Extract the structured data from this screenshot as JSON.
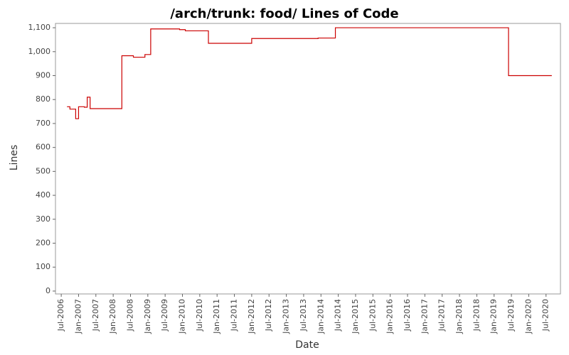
{
  "chart_data": {
    "type": "line",
    "step": true,
    "title": "/arch/trunk: food/ Lines of Code",
    "x_label": "Date",
    "y_label": "Lines",
    "x": [
      "2006-09",
      "2006-10",
      "2006-12",
      "2007-01",
      "2007-03",
      "2007-04",
      "2007-05",
      "2008-04",
      "2008-08",
      "2008-12",
      "2009-02",
      "2009-12",
      "2010-02",
      "2010-10",
      "2012-01",
      "2013-12",
      "2014-06",
      "2019-06",
      "2020-09"
    ],
    "series": [
      {
        "name": "Lines",
        "color": "#cc0000",
        "values": [
          770,
          760,
          720,
          770,
          768,
          810,
          762,
          983,
          977,
          988,
          1095,
          1092,
          1087,
          1035,
          1055,
          1057,
          1100,
          900,
          900
        ]
      }
    ],
    "xlim": [
      "2006-05",
      "2020-12"
    ],
    "xticks": [
      {
        "value": "2006-07",
        "label": "Jul-2006"
      },
      {
        "value": "2007-01",
        "label": "Jan-2007"
      },
      {
        "value": "2007-07",
        "label": "Jul-2007"
      },
      {
        "value": "2008-01",
        "label": "Jan-2008"
      },
      {
        "value": "2008-07",
        "label": "Jul-2008"
      },
      {
        "value": "2009-01",
        "label": "Jan-2009"
      },
      {
        "value": "2009-07",
        "label": "Jul-2009"
      },
      {
        "value": "2010-01",
        "label": "Jan-2010"
      },
      {
        "value": "2010-07",
        "label": "Jul-2010"
      },
      {
        "value": "2011-01",
        "label": "Jan-2011"
      },
      {
        "value": "2011-07",
        "label": "Jul-2011"
      },
      {
        "value": "2012-01",
        "label": "Jan-2012"
      },
      {
        "value": "2012-07",
        "label": "Jul-2012"
      },
      {
        "value": "2013-01",
        "label": "Jan-2013"
      },
      {
        "value": "2013-07",
        "label": "Jul-2013"
      },
      {
        "value": "2014-01",
        "label": "Jan-2014"
      },
      {
        "value": "2014-07",
        "label": "Jul-2014"
      },
      {
        "value": "2015-01",
        "label": "Jan-2015"
      },
      {
        "value": "2015-07",
        "label": "Jul-2015"
      },
      {
        "value": "2016-01",
        "label": "Jan-2016"
      },
      {
        "value": "2016-07",
        "label": "Jul-2016"
      },
      {
        "value": "2017-01",
        "label": "Jan-2017"
      },
      {
        "value": "2017-07",
        "label": "Jul-2017"
      },
      {
        "value": "2018-01",
        "label": "Jan-2018"
      },
      {
        "value": "2018-07",
        "label": "Jul-2018"
      },
      {
        "value": "2019-01",
        "label": "Jan-2019"
      },
      {
        "value": "2019-07",
        "label": "Jul-2019"
      },
      {
        "value": "2020-01",
        "label": "Jan-2020"
      },
      {
        "value": "2020-07",
        "label": "Jul-2020"
      }
    ],
    "ylim": [
      -12,
      1118
    ],
    "yticks": [
      0,
      100,
      200,
      300,
      400,
      500,
      600,
      700,
      800,
      900,
      {
        "value": 1000,
        "label": "1,000"
      },
      {
        "value": 1100,
        "label": "1,100"
      }
    ],
    "grid": false
  }
}
